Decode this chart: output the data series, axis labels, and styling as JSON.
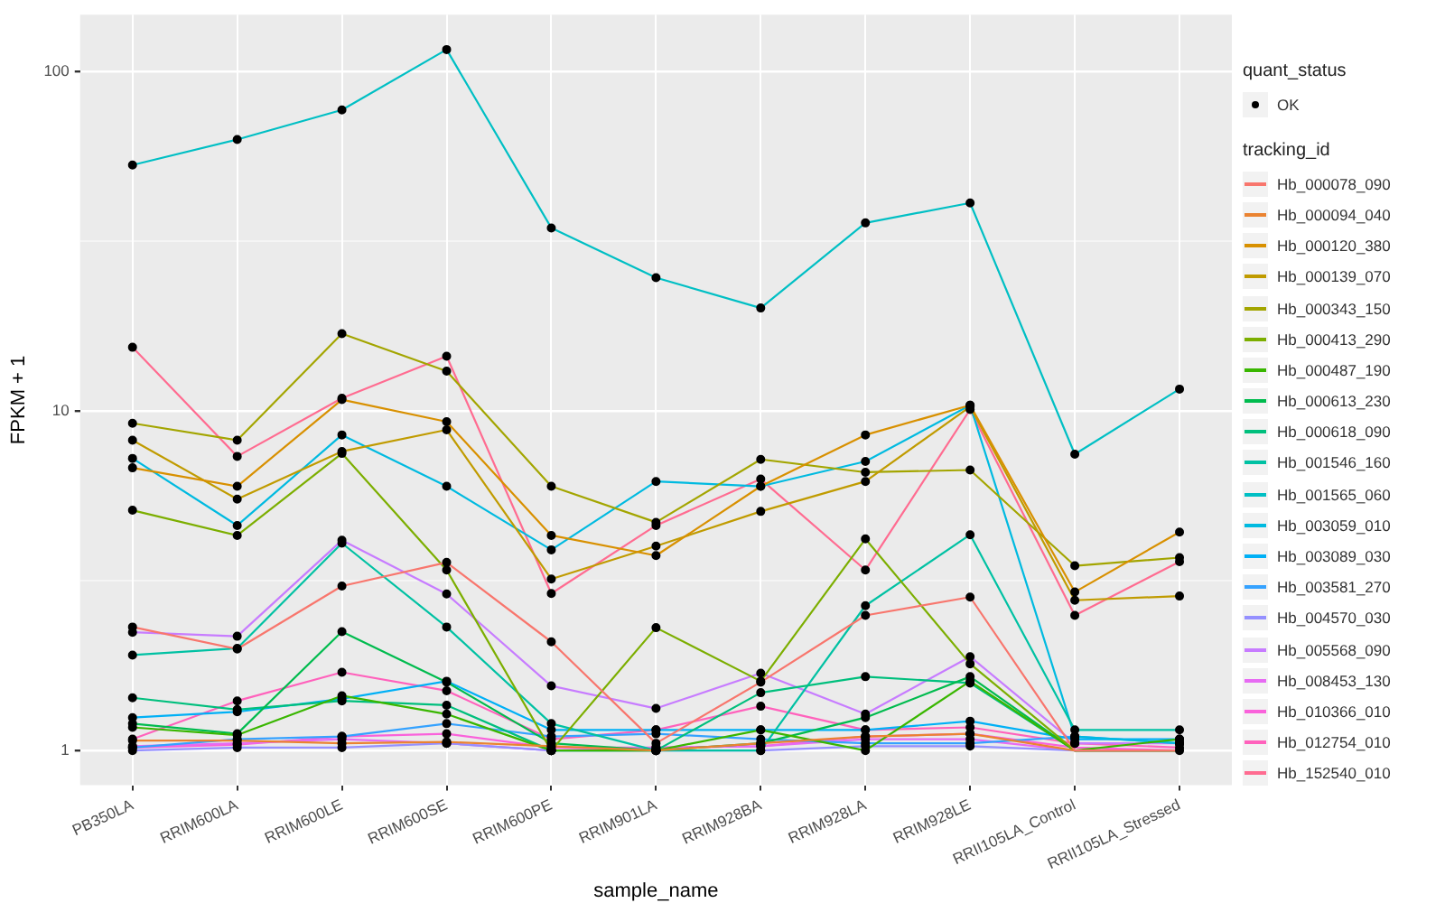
{
  "chart_data": {
    "type": "line",
    "xlabel": "sample_name",
    "ylabel": "FPKM + 1",
    "legend_title": "tracking_id",
    "legend": "right",
    "grid": true,
    "log": "y",
    "marker": "none",
    "line_style": "solid",
    "annotations": [
      "quant_status"
    ],
    "categories": [
      "PB350LA",
      "RRIM600LA",
      "RRIM600LE",
      "RRIM600SE",
      "RRIM600PE",
      "RRIM901LA",
      "RRIM928BA",
      "RRIM928LA",
      "RRIM928LE",
      "RRII105LA_Control",
      "RRII105LA_Stressed"
    ],
    "ylim": [
      0.79,
      147
    ],
    "yticks": [
      1,
      {
        "value": 3.16,
        "label": null
      },
      10,
      {
        "value": 31.6,
        "label": null
      },
      100
    ],
    "series": [
      {
        "name": "OK",
        "type": "scatter",
        "marker": "circle",
        "color": "#000000",
        "x": [
          "PB350LA",
          "RRIM600LA",
          "RRIM600LE",
          "RRIM600SE",
          "RRIM600PE",
          "RRIM901LA",
          "RRIM928BA",
          "RRIM928LA",
          "RRIM928LE",
          "RRII105LA_Control",
          "RRII105LA_Stressed",
          "PB350LA",
          "RRIM600LA",
          "RRIM600LE",
          "RRIM600SE",
          "RRIM600PE",
          "RRIM901LA",
          "RRIM928BA",
          "RRIM928LA",
          "RRIM928LE",
          "RRII105LA_Control",
          "RRII105LA_Stressed",
          "PB350LA",
          "RRIM600LA",
          "RRIM600LE",
          "RRIM600SE",
          "RRIM600PE",
          "RRIM901LA",
          "RRIM928BA",
          "RRIM928LA",
          "RRIM928LE",
          "RRII105LA_Control",
          "RRII105LA_Stressed",
          "PB350LA",
          "RRIM600LA",
          "RRIM600LE",
          "RRIM600SE",
          "RRIM600PE",
          "RRIM901LA",
          "RRIM928BA",
          "RRIM928LA",
          "RRIM928LE",
          "RRII105LA_Control",
          "RRII105LA_Stressed",
          "PB350LA",
          "RRIM600LA",
          "RRIM600LE",
          "RRIM600SE",
          "RRIM600PE",
          "RRIM901LA",
          "RRIM928BA",
          "RRIM928LA",
          "RRIM928LE",
          "RRII105LA_Control",
          "RRII105LA_Stressed",
          "PB350LA",
          "RRIM600LA",
          "RRIM600LE",
          "RRIM600SE",
          "RRIM600PE",
          "RRIM901LA",
          "RRIM928BA",
          "RRIM928LA",
          "RRIM928LE",
          "RRII105LA_Control",
          "RRII105LA_Stressed",
          "PB350LA",
          "RRIM600LA",
          "RRIM600LE",
          "RRIM600SE",
          "RRIM600PE",
          "RRIM901LA",
          "RRIM928BA",
          "RRIM928LA",
          "RRIM928LE",
          "RRII105LA_Control",
          "RRII105LA_Stressed",
          "PB350LA",
          "RRIM600LA",
          "RRIM600LE",
          "RRIM600SE",
          "RRIM600PE",
          "RRIM901LA",
          "RRIM928BA",
          "RRIM928LA",
          "RRIM928LE",
          "RRII105LA_Control",
          "RRII105LA_Stressed",
          "PB350LA",
          "RRIM600LA",
          "RRIM600LE",
          "RRIM600SE",
          "RRIM600PE",
          "RRIM901LA",
          "RRIM928BA",
          "RRIM928LA",
          "RRIM928LE",
          "RRII105LA_Control",
          "RRII105LA_Stressed",
          "PB350LA",
          "RRIM600LA",
          "RRIM600LE",
          "RRIM600SE",
          "RRIM600PE",
          "RRIM901LA",
          "RRIM928BA",
          "RRIM928LA",
          "RRIM928LE",
          "RRII105LA_Control",
          "RRII105LA_Stressed",
          "PB350LA",
          "RRIM600LA",
          "RRIM600LE",
          "RRIM600SE",
          "RRIM600PE",
          "RRIM901LA",
          "RRIM928BA",
          "RRIM928LA",
          "RRIM928LE",
          "RRII105LA_Control",
          "RRII105LA_Stressed",
          "PB350LA",
          "RRIM600LA",
          "RRIM600LE",
          "RRIM600SE",
          "RRIM600PE",
          "RRIM901LA",
          "RRIM928BA",
          "RRIM928LA",
          "RRIM928LE",
          "RRII105LA_Control",
          "RRII105LA_Stressed",
          "PB350LA",
          "RRIM600LA",
          "RRIM600LE",
          "RRIM600SE",
          "RRIM600PE",
          "RRIM901LA",
          "RRIM928BA",
          "RRIM928LA",
          "RRIM928LE",
          "RRII105LA_Control",
          "RRII105LA_Stressed",
          "PB350LA",
          "RRIM600LA",
          "RRIM600LE",
          "RRIM600SE",
          "RRIM600PE",
          "RRIM901LA",
          "RRIM928BA",
          "RRIM928LA",
          "RRIM928LE",
          "RRII105LA_Control",
          "RRII105LA_Stressed",
          "PB350LA",
          "RRIM600LA",
          "RRIM600LE",
          "RRIM600SE",
          "RRIM600PE",
          "RRIM901LA",
          "RRIM928BA",
          "RRIM928LA",
          "RRIM928LE",
          "RRII105LA_Control",
          "RRII105LA_Stressed",
          "PB350LA",
          "RRIM600LA",
          "RRIM600LE",
          "RRIM600SE",
          "RRIM600PE",
          "RRIM901LA",
          "RRIM928BA",
          "RRIM928LA",
          "RRIM928LE",
          "RRII105LA_Control",
          "RRII105LA_Stressed",
          "PB350LA",
          "RRIM600LA",
          "RRIM600LE",
          "RRIM600SE",
          "RRIM600PE",
          "RRIM901LA",
          "RRIM928BA",
          "RRIM928LA",
          "RRIM928LE",
          "RRII105LA_Control",
          "RRII105LA_Stressed",
          "PB350LA",
          "RRIM600LA",
          "RRIM600LE",
          "RRIM600SE",
          "RRIM600PE",
          "RRIM901LA",
          "RRIM928BA",
          "RRIM928LA",
          "RRIM928LE",
          "RRII105LA_Control",
          "RRII105LA_Stressed",
          "PB350LA",
          "RRIM600LA",
          "RRIM600LE",
          "RRIM600SE",
          "RRIM600PE",
          "RRIM901LA",
          "RRIM928BA",
          "RRIM928LA",
          "RRIM928LE",
          "RRII105LA_Control",
          "RRII105LA_Stressed",
          "PB350LA",
          "RRIM600LA",
          "RRIM600LE",
          "RRIM600SE",
          "RRIM600PE",
          "RRIM901LA",
          "RRIM928BA",
          "RRIM928LA",
          "RRIM928LE",
          "RRII105LA_Control",
          "RRII105LA_Stressed"
        ],
        "values": [
          2.31,
          1.99,
          3.05,
          3.58,
          2.09,
          1.05,
          1.59,
          2.5,
          2.83,
          null,
          null,
          1.07,
          1.07,
          1.05,
          1.06,
          1.03,
          1.0,
          1.05,
          1.1,
          1.12,
          null,
          null,
          6.8,
          6.0,
          10.8,
          9.3,
          4.3,
          3.75,
          6.0,
          8.5,
          10.4,
          2.93,
          4.4,
          8.2,
          5.5,
          7.6,
          8.8,
          3.2,
          4.0,
          5.06,
          6.2,
          10.3,
          2.77,
          2.85,
          9.2,
          8.2,
          16.9,
          13.1,
          6.0,
          4.7,
          7.2,
          6.6,
          6.7,
          3.5,
          3.7,
          5.1,
          4.3,
          7.5,
          3.4,
          1.0,
          2.3,
          1.6,
          4.2,
          1.8,
          null,
          null,
          1.17,
          1.11,
          1.45,
          1.28,
          1.0,
          1.0,
          1.15,
          1.0,
          1.6,
          null,
          1.08,
          1.2,
          1.12,
          2.24,
          1.59,
          1.05,
          1.0,
          1.05,
          1.25,
          1.65,
          null,
          null,
          1.43,
          1.32,
          1.4,
          1.36,
          1.0,
          1.0,
          1.48,
          1.65,
          1.58,
          null,
          null,
          1.91,
          2.0,
          4.08,
          2.31,
          1.2,
          1.0,
          1.0,
          2.67,
          4.32,
          1.15,
          1.15,
          53,
          63,
          77,
          116,
          34.6,
          24.7,
          20.1,
          35.8,
          41,
          7.46,
          11.6,
          7.25,
          4.6,
          8.5,
          6.0,
          3.9,
          6.2,
          6.0,
          7.1,
          10.4,
          1.1,
          1.05,
          1.25,
          1.3,
          1.42,
          1.6,
          1.15,
          1.15,
          1.15,
          1.15,
          1.22,
          1.08,
          1.08,
          1.02,
          1.08,
          1.1,
          1.2,
          1.1,
          1.12,
          1.08,
          1.05,
          1.05,
          1.1,
          1.05,
          1.0,
          1.02,
          1.02,
          1.05,
          1.0,
          1.0,
          1.0,
          1.03,
          1.03,
          null,
          null,
          2.23,
          2.17,
          4.16,
          2.89,
          1.55,
          1.33,
          1.69,
          1.28,
          1.89,
          1.05,
          1.05,
          1.03,
          1.05,
          1.08,
          1.05,
          1.0,
          1.02,
          1.03,
          1.08,
          1.08,
          null,
          null,
          1.02,
          1.04,
          1.1,
          1.12,
          1.02,
          1.02,
          1.03,
          1.1,
          1.12,
          null,
          1.0,
          1.08,
          1.4,
          1.7,
          1.5,
          1.08,
          1.15,
          1.35,
          1.15,
          1.17,
          1.05,
          1.02,
          15.4,
          7.35,
          10.9,
          14.5,
          2.9,
          4.6,
          6.3,
          3.4,
          10.1,
          2.5,
          3.6
        ]
      },
      {
        "name": "Hb_000078_090",
        "color": "#f8766d",
        "values": [
          2.31,
          1.99,
          3.05,
          3.58,
          2.09,
          1.05,
          1.59,
          2.5,
          2.83,
          1.0,
          1.0
        ]
      },
      {
        "name": "Hb_000094_040",
        "color": "#ea8331",
        "values": [
          1.07,
          1.07,
          1.05,
          1.06,
          1.03,
          1.0,
          1.05,
          1.1,
          1.12,
          1.0,
          1.0
        ]
      },
      {
        "name": "Hb_000120_380",
        "color": "#d89000",
        "values": [
          6.8,
          6.0,
          10.8,
          9.3,
          4.3,
          3.75,
          6.0,
          8.5,
          10.4,
          2.93,
          4.4
        ]
      },
      {
        "name": "Hb_000139_070",
        "color": "#c09b00",
        "values": [
          8.2,
          5.5,
          7.6,
          8.8,
          3.2,
          4.0,
          5.06,
          6.2,
          10.3,
          2.77,
          2.85
        ]
      },
      {
        "name": "Hb_000343_150",
        "color": "#a3a500",
        "values": [
          9.2,
          8.2,
          16.9,
          13.1,
          6.0,
          4.7,
          7.2,
          6.6,
          6.7,
          3.5,
          3.7
        ]
      },
      {
        "name": "Hb_000413_290",
        "color": "#7cae00",
        "values": [
          5.1,
          4.3,
          7.5,
          3.4,
          1.0,
          2.3,
          1.6,
          4.2,
          1.8,
          1.0,
          1.0
        ]
      },
      {
        "name": "Hb_000487_190",
        "color": "#39b600",
        "values": [
          1.17,
          1.11,
          1.45,
          1.28,
          1.0,
          1.0,
          1.15,
          1.0,
          1.6,
          1.0,
          1.08
        ]
      },
      {
        "name": "Hb_000613_230",
        "color": "#00bb4e",
        "values": [
          1.2,
          1.12,
          2.24,
          1.59,
          1.05,
          1.0,
          1.05,
          1.25,
          1.65,
          1.0,
          1.0
        ]
      },
      {
        "name": "Hb_000618_090",
        "color": "#00bf7d",
        "values": [
          1.43,
          1.32,
          1.4,
          1.36,
          1.0,
          1.0,
          1.48,
          1.65,
          1.58,
          1.0,
          1.0
        ]
      },
      {
        "name": "Hb_001546_160",
        "color": "#00c1a3",
        "values": [
          1.91,
          2.0,
          4.08,
          2.31,
          1.2,
          1.0,
          1.0,
          2.67,
          4.32,
          1.15,
          1.15
        ]
      },
      {
        "name": "Hb_001565_060",
        "color": "#00bfc4",
        "values": [
          53,
          63,
          77,
          116,
          34.6,
          24.7,
          20.1,
          35.8,
          41,
          7.46,
          11.6
        ]
      },
      {
        "name": "Hb_003059_010",
        "color": "#00bae0",
        "values": [
          7.25,
          4.6,
          8.5,
          6.0,
          3.9,
          6.2,
          6.0,
          7.1,
          10.4,
          1.1,
          1.05
        ]
      },
      {
        "name": "Hb_003089_030",
        "color": "#00b0f6",
        "values": [
          1.25,
          1.3,
          1.42,
          1.6,
          1.15,
          1.15,
          1.15,
          1.15,
          1.22,
          1.08,
          1.08
        ]
      },
      {
        "name": "Hb_003581_270",
        "color": "#35a2ff",
        "values": [
          1.02,
          1.08,
          1.1,
          1.2,
          1.1,
          1.12,
          1.08,
          1.05,
          1.05,
          1.1,
          1.05
        ]
      },
      {
        "name": "Hb_004570_030",
        "color": "#9590ff",
        "values": [
          1.0,
          1.02,
          1.02,
          1.05,
          1.0,
          1.0,
          1.0,
          1.03,
          1.03,
          1.0,
          1.0
        ]
      },
      {
        "name": "Hb_005568_090",
        "color": "#c77cff",
        "values": [
          2.23,
          2.17,
          4.16,
          2.89,
          1.55,
          1.33,
          1.69,
          1.28,
          1.89,
          1.05,
          1.05
        ]
      },
      {
        "name": "Hb_008453_130",
        "color": "#e76bf3",
        "values": [
          1.03,
          1.05,
          1.08,
          1.05,
          1.0,
          1.02,
          1.03,
          1.08,
          1.08,
          1.0,
          1.0
        ]
      },
      {
        "name": "Hb_010366_010",
        "color": "#fa62db",
        "values": [
          1.02,
          1.04,
          1.1,
          1.12,
          1.02,
          1.02,
          1.03,
          1.1,
          1.12,
          1.02,
          1.0
        ]
      },
      {
        "name": "Hb_012754_010",
        "color": "#ff62bc",
        "values": [
          1.08,
          1.4,
          1.7,
          1.5,
          1.08,
          1.15,
          1.35,
          1.15,
          1.17,
          1.05,
          1.02
        ]
      },
      {
        "name": "Hb_152540_010",
        "color": "#ff6c91",
        "values": [
          15.4,
          7.35,
          10.9,
          14.5,
          2.9,
          4.6,
          6.3,
          3.4,
          10.1,
          2.5,
          3.6
        ]
      }
    ]
  }
}
